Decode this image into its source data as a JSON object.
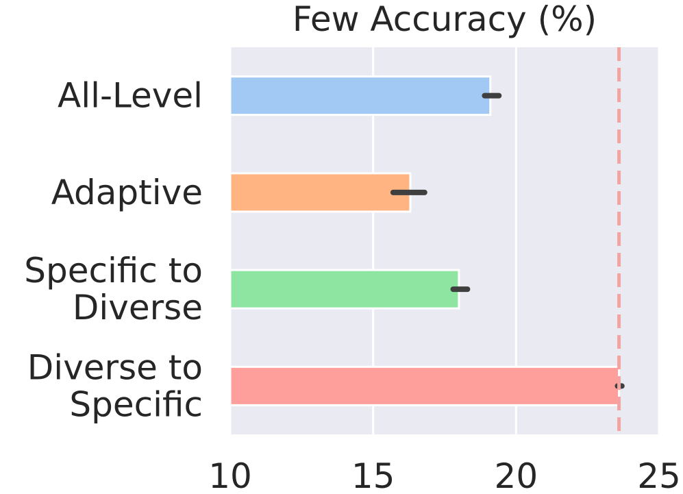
{
  "chart_data": {
    "type": "bar",
    "orientation": "horizontal",
    "title": "Few Accuracy (%)",
    "xlabel": "",
    "ylabel": "",
    "categories": [
      [
        "All-Level"
      ],
      [
        "Adaptive"
      ],
      [
        "Specific to",
        "Diverse"
      ],
      [
        "Diverse to",
        "Specific"
      ]
    ],
    "category_labels": [
      "All-Level",
      "Adaptive",
      "Specific to Diverse",
      "Diverse to Specific"
    ],
    "values": [
      19.1,
      16.3,
      18.0,
      23.6
    ],
    "error_low": [
      18.9,
      15.7,
      17.8,
      23.55
    ],
    "error_high": [
      19.4,
      16.8,
      18.3,
      23.7
    ],
    "colors": [
      "#a1c9f4",
      "#ffb482",
      "#8de5a1",
      "#ff9f9b"
    ],
    "xlim": [
      10,
      25
    ],
    "xticks": [
      "10",
      "15",
      "20",
      "25"
    ],
    "reference_line": {
      "value": 23.6,
      "color": "#f4a3a3",
      "style": "dashed"
    },
    "grid": true,
    "background": "#eaeaf2",
    "error_bar_color": "#3f3f3f"
  }
}
